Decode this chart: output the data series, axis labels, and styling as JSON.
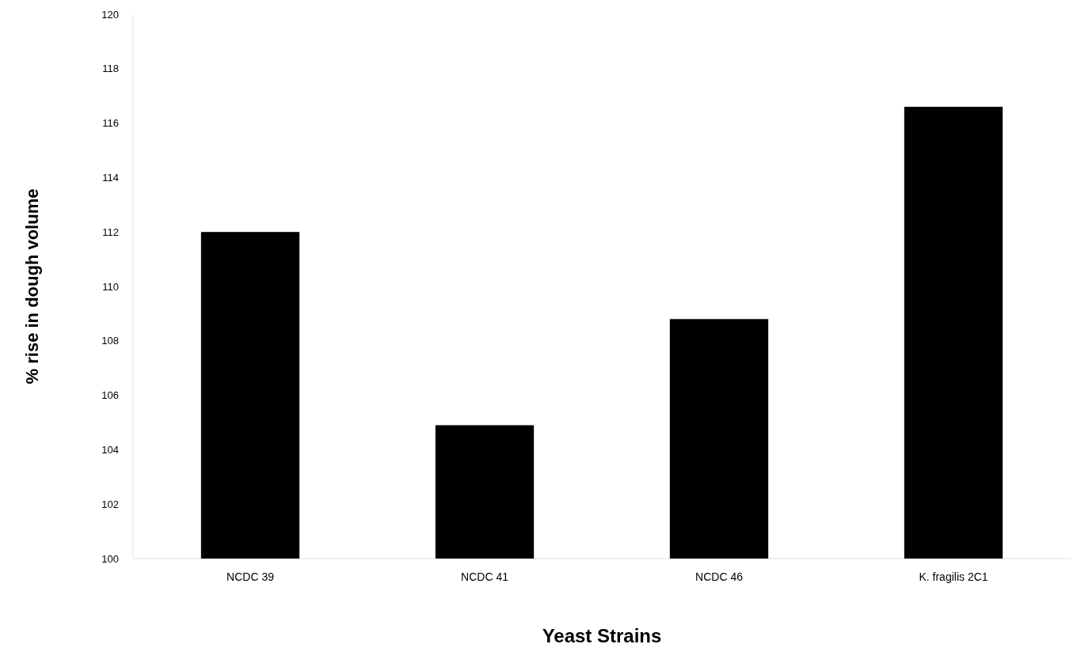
{
  "chart_data": {
    "type": "bar",
    "xlabel": "Yeast Strains",
    "ylabel": "% rise in dough volume",
    "categories": [
      "NCDC 39",
      "NCDC 41",
      "NCDC 46",
      "K. fragilis 2C1"
    ],
    "values": [
      112.0,
      104.9,
      108.8,
      116.6
    ],
    "color": "#000000",
    "ylim": [
      100,
      120
    ],
    "yticks": [
      100,
      102,
      104,
      106,
      108,
      110,
      112,
      114,
      116,
      118,
      120
    ],
    "grid": false
  }
}
